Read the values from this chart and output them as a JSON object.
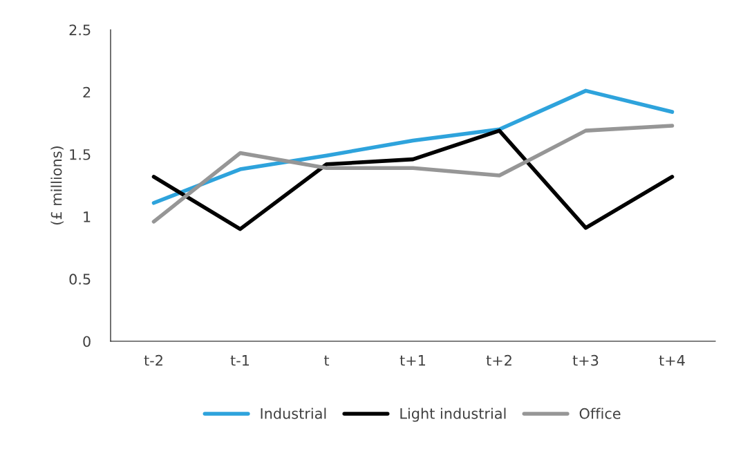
{
  "chart_data": {
    "type": "line",
    "ylabel": "(£ millions)",
    "categories": [
      "t-2",
      "t-1",
      "t",
      "t+1",
      "t+2",
      "t+3",
      "t+4"
    ],
    "series": [
      {
        "name": "Industrial",
        "color": "#2ea3dc",
        "values": [
          1.11,
          1.38,
          1.49,
          1.61,
          1.7,
          2.01,
          1.84
        ]
      },
      {
        "name": "Light industrial",
        "color": "#000000",
        "values": [
          1.32,
          0.9,
          1.42,
          1.46,
          1.69,
          0.91,
          1.32
        ]
      },
      {
        "name": "Office",
        "color": "#969696",
        "values": [
          0.96,
          1.51,
          1.39,
          1.39,
          1.33,
          1.69,
          1.73
        ]
      }
    ],
    "ylim": [
      0,
      2.5
    ],
    "yticks": [
      0,
      0.5,
      1,
      1.5,
      2,
      2.5
    ],
    "grid": false,
    "legend": "bottom",
    "marker": "none",
    "line_style": "solid"
  }
}
